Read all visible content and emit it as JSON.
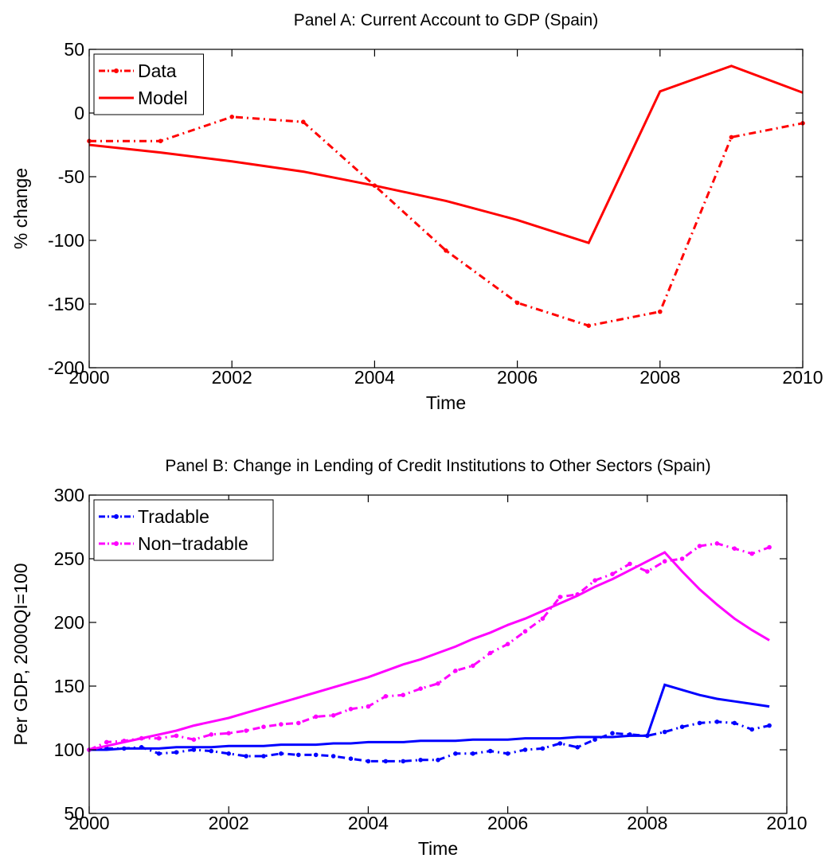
{
  "chart_data": [
    {
      "type": "line",
      "title": "Panel A: Current Account to GDP (Spain)",
      "xlabel": "Time",
      "ylabel": "% change",
      "x": [
        2000,
        2001,
        2002,
        2003,
        2004,
        2005,
        2006,
        2007,
        2008,
        2009,
        2010
      ],
      "series": [
        {
          "name": "Data",
          "color": "#ff0000",
          "linestyle": "dashdot",
          "marker": true,
          "values": [
            -22,
            -22,
            -3,
            -7,
            -57,
            -108,
            -149,
            -167,
            -156,
            -19,
            -8
          ]
        },
        {
          "name": "Model",
          "color": "#ff0000",
          "linestyle": "solid",
          "marker": false,
          "values": [
            -25,
            -31,
            -38,
            -46,
            -57,
            -69,
            -84,
            -102,
            17,
            37,
            16
          ]
        }
      ],
      "xlim": [
        2000,
        2010
      ],
      "xticks": [
        2000,
        2002,
        2004,
        2006,
        2008,
        2010
      ],
      "ylim": [
        -200,
        50
      ],
      "yticks": [
        -200,
        -150,
        -100,
        -50,
        0,
        50
      ],
      "legend": "upper left",
      "grid": false
    },
    {
      "type": "line",
      "title": "Panel B: Change in Lending of Credit Institutions to Other Sectors (Spain)",
      "xlabel": "Time",
      "ylabel": "Per GDP, 2000QI=100",
      "x": [
        2000,
        2000.25,
        2000.5,
        2000.75,
        2001,
        2001.25,
        2001.5,
        2001.75,
        2002,
        2002.25,
        2002.5,
        2002.75,
        2003,
        2003.25,
        2003.5,
        2003.75,
        2004,
        2004.25,
        2004.5,
        2004.75,
        2005,
        2005.25,
        2005.5,
        2005.75,
        2006,
        2006.25,
        2006.5,
        2006.75,
        2007,
        2007.25,
        2007.5,
        2007.75,
        2008,
        2008.25,
        2008.5,
        2008.75,
        2009,
        2009.25,
        2009.5,
        2009.75
      ],
      "series": [
        {
          "name": "Tradable",
          "color": "#0000ff",
          "linestyle": "dashdot",
          "marker": true,
          "values": [
            100,
            101,
            101,
            102,
            97,
            98,
            100,
            99,
            97,
            95,
            95,
            97,
            96,
            96,
            95,
            93,
            91,
            91,
            91,
            92,
            92,
            97,
            97,
            99,
            97,
            100,
            101,
            105,
            102,
            108,
            113,
            112,
            111,
            114,
            118,
            121,
            122,
            121,
            116,
            119
          ]
        },
        {
          "name": "Non−tradable",
          "color": "#ff00ff",
          "linestyle": "dashdot",
          "marker": true,
          "values": [
            100,
            106,
            107,
            109,
            109,
            111,
            108,
            112,
            113,
            115,
            118,
            120,
            121,
            126,
            127,
            132,
            134,
            142,
            143,
            148,
            152,
            162,
            166,
            176,
            183,
            193,
            203,
            220,
            222,
            233,
            238,
            246,
            240,
            248,
            250,
            260,
            262,
            258,
            254,
            259
          ]
        },
        {
          "color": "#0000ff",
          "linestyle": "solid",
          "marker": false,
          "values": [
            100,
            100,
            101,
            101,
            101,
            102,
            102,
            102,
            103,
            103,
            103,
            104,
            104,
            104,
            105,
            105,
            106,
            106,
            106,
            107,
            107,
            107,
            108,
            108,
            108,
            109,
            109,
            109,
            110,
            110,
            110,
            111,
            111,
            151,
            147,
            143,
            140,
            138,
            136,
            134
          ]
        },
        {
          "color": "#ff00ff",
          "linestyle": "solid",
          "marker": false,
          "values": [
            100,
            103,
            106,
            109,
            112,
            115,
            119,
            122,
            125,
            129,
            133,
            137,
            141,
            145,
            149,
            153,
            157,
            162,
            167,
            171,
            176,
            181,
            187,
            192,
            198,
            203,
            209,
            215,
            221,
            228,
            234,
            241,
            248,
            255,
            240,
            226,
            214,
            203,
            194,
            186
          ]
        }
      ],
      "xlim": [
        2000,
        2010
      ],
      "xticks": [
        2000,
        2002,
        2004,
        2006,
        2008,
        2010
      ],
      "ylim": [
        50,
        300
      ],
      "yticks": [
        50,
        100,
        150,
        200,
        250,
        300
      ],
      "legend": "upper left",
      "grid": false
    }
  ]
}
